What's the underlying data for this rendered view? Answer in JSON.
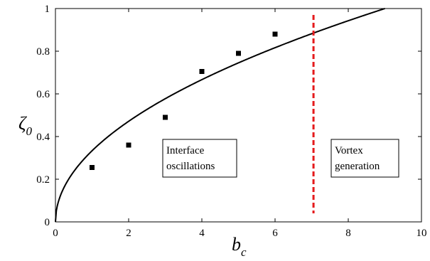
{
  "chart_data": {
    "type": "scatter",
    "xlabel": {
      "main": "b",
      "sub": "c"
    },
    "ylabel": {
      "main": "ζ",
      "sub": "0"
    },
    "xlim": [
      0,
      10
    ],
    "ylim": [
      0,
      1
    ],
    "xticks": [
      0,
      2,
      4,
      6,
      8,
      10
    ],
    "yticks": [
      0,
      0.2,
      0.4,
      0.6,
      0.8,
      1
    ],
    "grid": false,
    "series": [
      {
        "type": "scatter",
        "marker": "square",
        "color": "#000000",
        "x": [
          1,
          2,
          3,
          4,
          5,
          6
        ],
        "y": [
          0.255,
          0.36,
          0.49,
          0.705,
          0.79,
          0.88
        ]
      },
      {
        "type": "line",
        "color": "#000000",
        "style": "solid",
        "function": "y = sqrt(x / 9)",
        "x_range": [
          0,
          10
        ]
      },
      {
        "type": "vline",
        "color": "#e41a1c",
        "style": "dashed",
        "x": 7.05,
        "y_range": [
          0.04,
          0.97
        ]
      }
    ],
    "annotations": [
      {
        "lines": [
          "Interface",
          "oscillations"
        ]
      },
      {
        "lines": [
          "Vortex",
          "generation"
        ]
      }
    ]
  }
}
